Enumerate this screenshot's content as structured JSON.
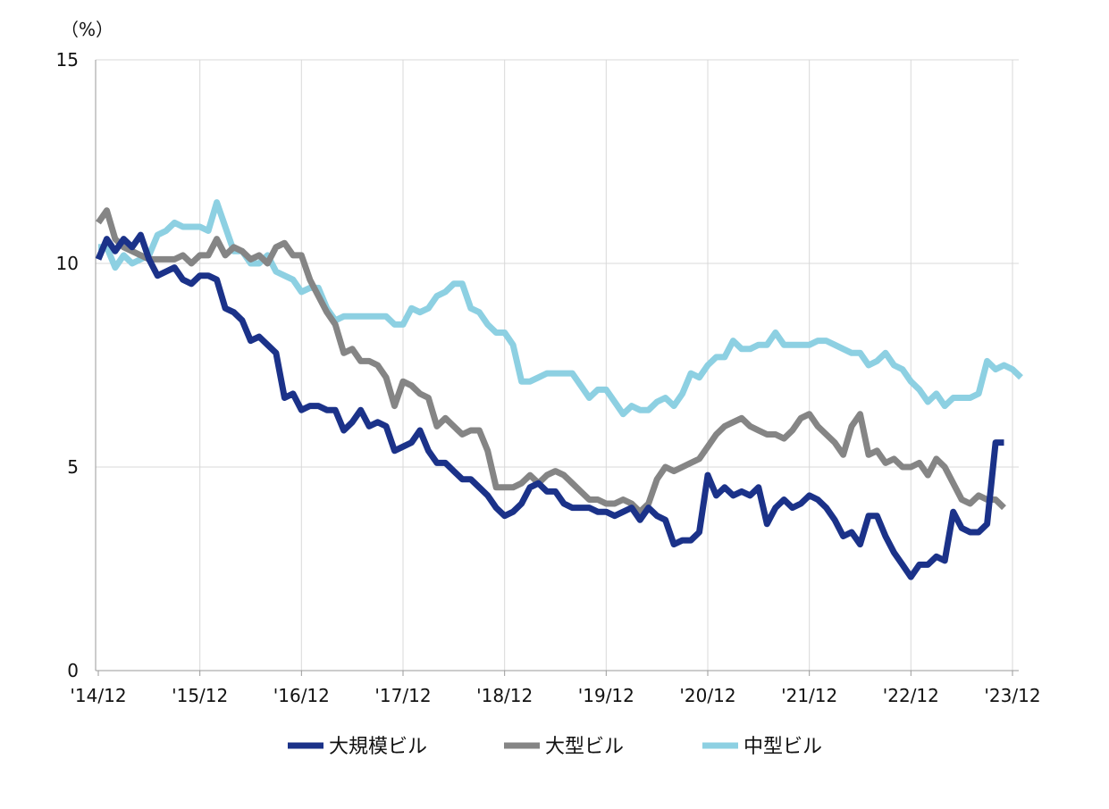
{
  "chart_data": {
    "type": "line",
    "unit_label": "（%）",
    "y_ticks": [
      "0",
      "5",
      "10",
      "15"
    ],
    "ylim": [
      0,
      15
    ],
    "x_tick_labels": [
      "'14/12",
      "'15/12",
      "'16/12",
      "'17/12",
      "'18/12",
      "'19/12",
      "'20/12",
      "'21/12",
      "'22/12",
      "'23/12"
    ],
    "x_start": "2014-12",
    "grid": "vertical lines at year ticks, horizontal lines at y ticks",
    "legend_position": "bottom",
    "series": [
      {
        "name": "大規模ビル",
        "color": "#1b3289",
        "values": [
          10.1,
          10.6,
          10.3,
          10.6,
          10.4,
          10.7,
          10.1,
          9.7,
          9.8,
          9.9,
          9.6,
          9.5,
          9.7,
          9.7,
          9.6,
          8.9,
          8.8,
          8.6,
          8.1,
          8.2,
          8.0,
          7.8,
          6.7,
          6.8,
          6.4,
          6.5,
          6.5,
          6.4,
          6.4,
          5.9,
          6.1,
          6.4,
          6.0,
          6.1,
          6.0,
          5.4,
          5.5,
          5.6,
          5.9,
          5.4,
          5.1,
          5.1,
          4.9,
          4.7,
          4.7,
          4.5,
          4.3,
          4.0,
          3.8,
          3.9,
          4.1,
          4.5,
          4.6,
          4.4,
          4.4,
          4.1,
          4.0,
          4.0,
          4.0,
          3.9,
          3.9,
          3.8,
          3.9,
          4.0,
          3.7,
          4.0,
          3.8,
          3.7,
          3.1,
          3.2,
          3.2,
          3.4,
          4.8,
          4.3,
          4.5,
          4.3,
          4.4,
          4.3,
          4.5,
          3.6,
          4.0,
          4.2,
          4.0,
          4.1,
          4.3,
          4.2,
          4.0,
          3.7,
          3.3,
          3.4,
          3.1,
          3.8,
          3.8,
          3.3,
          2.9,
          2.6,
          2.3,
          2.6,
          2.6,
          2.8,
          2.7,
          3.9,
          3.5,
          3.4,
          3.4,
          3.6,
          5.6,
          5.6
        ]
      },
      {
        "name": "大型ビル",
        "color": "#858585",
        "values": [
          11.0,
          11.3,
          10.6,
          10.4,
          10.3,
          10.2,
          10.1,
          10.1,
          10.1,
          10.1,
          10.2,
          10.0,
          10.2,
          10.2,
          10.6,
          10.2,
          10.4,
          10.3,
          10.1,
          10.2,
          10.0,
          10.4,
          10.5,
          10.2,
          10.2,
          9.6,
          9.2,
          8.8,
          8.5,
          7.8,
          7.9,
          7.6,
          7.6,
          7.5,
          7.2,
          6.5,
          7.1,
          7.0,
          6.8,
          6.7,
          6.0,
          6.2,
          6.0,
          5.8,
          5.9,
          5.9,
          5.4,
          4.5,
          4.5,
          4.5,
          4.6,
          4.8,
          4.6,
          4.8,
          4.9,
          4.8,
          4.6,
          4.4,
          4.2,
          4.2,
          4.1,
          4.1,
          4.2,
          4.1,
          3.9,
          4.1,
          4.7,
          5.0,
          4.9,
          5.0,
          5.1,
          5.2,
          5.5,
          5.8,
          6.0,
          6.1,
          6.2,
          6.0,
          5.9,
          5.8,
          5.8,
          5.7,
          5.9,
          6.2,
          6.3,
          6.0,
          5.8,
          5.6,
          5.3,
          6.0,
          6.3,
          5.3,
          5.4,
          5.1,
          5.2,
          5.0,
          5.0,
          5.1,
          4.8,
          5.2,
          5.0,
          4.6,
          4.2,
          4.1,
          4.3,
          4.2,
          4.2,
          4.0
        ]
      },
      {
        "name": "中型ビル",
        "color": "#8dd0e2",
        "values": [
          10.4,
          10.4,
          9.9,
          10.2,
          10.0,
          10.1,
          10.2,
          10.7,
          10.8,
          11.0,
          10.9,
          10.9,
          10.9,
          10.8,
          11.5,
          10.9,
          10.3,
          10.3,
          10.0,
          10.0,
          10.2,
          9.8,
          9.7,
          9.6,
          9.3,
          9.4,
          9.4,
          8.9,
          8.6,
          8.7,
          8.7,
          8.7,
          8.7,
          8.7,
          8.7,
          8.5,
          8.5,
          8.9,
          8.8,
          8.9,
          9.2,
          9.3,
          9.5,
          9.5,
          8.9,
          8.8,
          8.5,
          8.3,
          8.3,
          8.0,
          7.1,
          7.1,
          7.2,
          7.3,
          7.3,
          7.3,
          7.3,
          7.0,
          6.7,
          6.9,
          6.9,
          6.6,
          6.3,
          6.5,
          6.4,
          6.4,
          6.6,
          6.7,
          6.5,
          6.8,
          7.3,
          7.2,
          7.5,
          7.7,
          7.7,
          8.1,
          7.9,
          7.9,
          8.0,
          8.0,
          8.3,
          8.0,
          8.0,
          8.0,
          8.0,
          8.1,
          8.1,
          8.0,
          7.9,
          7.8,
          7.8,
          7.5,
          7.6,
          7.8,
          7.5,
          7.4,
          7.1,
          6.9,
          6.6,
          6.8,
          6.5,
          6.7,
          6.7,
          6.7,
          6.8,
          7.6,
          7.4,
          7.5,
          7.4,
          7.2
        ]
      }
    ]
  }
}
